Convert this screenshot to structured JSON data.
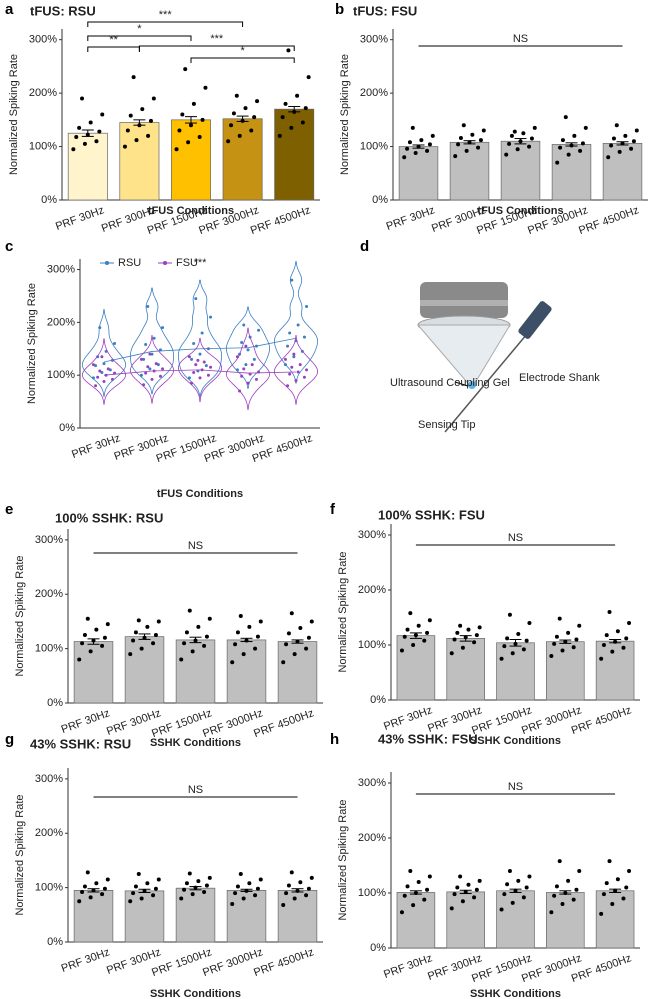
{
  "chart_data": [
    {
      "panel": "a",
      "type": "bar",
      "title": "tFUS: RSU",
      "title_color": "#2f5597",
      "ylabel": "Normalized Spiking Rate",
      "xlabel": "tFUS Conditions",
      "categories": [
        "PRF 30Hz",
        "PRF 300Hz",
        "PRF 1500Hz",
        "PRF 3000Hz",
        "PRF 4500Hz"
      ],
      "values": [
        125,
        145,
        150,
        152,
        170
      ],
      "errors": [
        6,
        5,
        6,
        5,
        5
      ],
      "colors": [
        "#fff4cc",
        "#ffe38a",
        "#ffc000",
        "#c69214",
        "#7f6000"
      ],
      "points": [
        [
          95,
          105,
          110,
          118,
          122,
          128,
          135,
          145,
          160,
          190
        ],
        [
          100,
          112,
          120,
          130,
          140,
          148,
          158,
          170,
          190,
          230
        ],
        [
          95,
          108,
          118,
          130,
          140,
          150,
          160,
          180,
          210,
          245
        ],
        [
          110,
          120,
          130,
          140,
          148,
          155,
          162,
          172,
          185,
          195
        ],
        [
          120,
          135,
          145,
          155,
          165,
          172,
          180,
          195,
          230,
          280
        ]
      ],
      "ylim": [
        0,
        320
      ],
      "yticks": [
        {
          "value": 0,
          "label": "0%"
        },
        {
          "value": 100,
          "label": "100%"
        },
        {
          "value": 200,
          "label": "200%"
        },
        {
          "value": 300,
          "label": "300%"
        }
      ],
      "significance": [
        {
          "between": [
            "PRF 30Hz",
            "PRF 3000Hz"
          ],
          "label": "***"
        },
        {
          "between": [
            "PRF 30Hz",
            "PRF 1500Hz"
          ],
          "label": "*"
        },
        {
          "between": [
            "PRF 30Hz",
            "PRF 300Hz"
          ],
          "label": "**"
        },
        {
          "between": [
            "PRF 300Hz",
            "PRF 4500Hz"
          ],
          "label": "***"
        },
        {
          "between": [
            "PRF 1500Hz",
            "PRF 4500Hz"
          ],
          "label": "*"
        }
      ]
    },
    {
      "panel": "b",
      "type": "bar",
      "title": "tFUS: FSU",
      "title_color": "#7030a0",
      "ylabel": "Normalized Spiking Rate",
      "xlabel": "tFUS Conditions",
      "categories": [
        "PRF 30Hz",
        "PRF 300Hz",
        "PRF 1500Hz",
        "PRF 3000Hz",
        "PRF 4500Hz"
      ],
      "values": [
        100,
        108,
        110,
        104,
        106
      ],
      "errors": [
        3,
        3,
        5,
        3,
        3
      ],
      "colors": [
        "#bfbfbf",
        "#bfbfbf",
        "#bfbfbf",
        "#bfbfbf",
        "#bfbfbf"
      ],
      "points": [
        [
          80,
          88,
          92,
          96,
          100,
          104,
          108,
          112,
          120,
          135
        ],
        [
          82,
          92,
          98,
          104,
          108,
          112,
          116,
          122,
          130,
          140
        ],
        [
          85,
          95,
          100,
          105,
          110,
          115,
          120,
          125,
          135,
          128
        ],
        [
          70,
          85,
          92,
          98,
          102,
          106,
          112,
          120,
          135,
          155
        ],
        [
          80,
          90,
          96,
          102,
          106,
          110,
          115,
          120,
          130,
          140
        ]
      ],
      "ylim": [
        0,
        320
      ],
      "yticks": [
        {
          "value": 0,
          "label": "0%"
        },
        {
          "value": 100,
          "label": "100%"
        },
        {
          "value": 200,
          "label": "200%"
        },
        {
          "value": 300,
          "label": "300%"
        }
      ],
      "significance": [
        {
          "between": [
            "PRF 30Hz",
            "PRF 4500Hz"
          ],
          "label": "NS"
        }
      ]
    },
    {
      "panel": "c",
      "type": "violin",
      "ylabel": "Normalized Spiking Rate",
      "xlabel": "tFUS Conditions",
      "annotation": "***",
      "categories": [
        "PRF 30Hz",
        "PRF 300Hz",
        "PRF 1500Hz",
        "PRF 3000Hz",
        "PRF 4500Hz"
      ],
      "series": [
        {
          "name": "RSU",
          "color": "#3a7fc1",
          "values": [
            125,
            145,
            150,
            152,
            170
          ],
          "points": [
            [
              95,
              105,
              110,
              118,
              122,
              128,
              135,
              145,
              160,
              190
            ],
            [
              100,
              112,
              120,
              130,
              140,
              148,
              158,
              170,
              190,
              230
            ],
            [
              95,
              108,
              118,
              130,
              140,
              150,
              160,
              180,
              210,
              245
            ],
            [
              110,
              120,
              130,
              140,
              148,
              155,
              162,
              172,
              185,
              195
            ],
            [
              120,
              135,
              145,
              155,
              165,
              172,
              180,
              195,
              230,
              280
            ]
          ]
        },
        {
          "name": "FSU",
          "color": "#9b3fbf",
          "values": [
            100,
            108,
            110,
            104,
            106
          ],
          "points": [
            [
              80,
              88,
              92,
              96,
              100,
              104,
              108,
              112,
              120,
              135
            ],
            [
              82,
              92,
              98,
              104,
              108,
              112,
              116,
              122,
              130,
              140
            ],
            [
              85,
              95,
              100,
              105,
              110,
              115,
              120,
              125,
              135,
              128
            ],
            [
              70,
              85,
              92,
              98,
              102,
              106,
              112,
              120,
              135,
              155
            ],
            [
              80,
              90,
              96,
              102,
              106,
              110,
              115,
              120,
              130,
              140
            ]
          ]
        }
      ],
      "ylim": [
        0,
        320
      ],
      "yticks": [
        {
          "value": 0,
          "label": "0%"
        },
        {
          "value": 100,
          "label": "100%"
        },
        {
          "value": 200,
          "label": "200%"
        },
        {
          "value": 300,
          "label": "300%"
        }
      ]
    },
    {
      "panel": "e",
      "type": "bar",
      "title": "100% SSHK: RSU",
      "title_color": "#2f5597",
      "ylabel": "Normalized Spiking Rate",
      "xlabel": "SSHK Conditions",
      "categories": [
        "PRF 30Hz",
        "PRF 300Hz",
        "PRF 1500Hz",
        "PRF 3000Hz",
        "PRF 4500Hz"
      ],
      "values": [
        113,
        122,
        116,
        116,
        113
      ],
      "errors": [
        5,
        5,
        5,
        3,
        3
      ],
      "colors": [
        "#bfbfbf",
        "#bfbfbf",
        "#bfbfbf",
        "#bfbfbf",
        "#bfbfbf"
      ],
      "points": [
        [
          80,
          95,
          105,
          110,
          115,
          120,
          125,
          135,
          145,
          155
        ],
        [
          90,
          100,
          110,
          115,
          120,
          125,
          130,
          140,
          150,
          152
        ],
        [
          80,
          95,
          105,
          110,
          115,
          122,
          130,
          140,
          155,
          170
        ],
        [
          75,
          90,
          100,
          108,
          115,
          122,
          130,
          140,
          150,
          160
        ],
        [
          75,
          90,
          100,
          108,
          113,
          120,
          128,
          138,
          150,
          165
        ]
      ],
      "ylim": [
        0,
        320
      ],
      "yticks": [
        {
          "value": 0,
          "label": "0%"
        },
        {
          "value": 100,
          "label": "100%"
        },
        {
          "value": 200,
          "label": "200%"
        },
        {
          "value": 300,
          "label": "300%"
        }
      ],
      "significance": [
        {
          "between": [
            "PRF 30Hz",
            "PRF 4500Hz"
          ],
          "label": "NS"
        }
      ]
    },
    {
      "panel": "f",
      "type": "bar",
      "title": "100% SSHK: FSU",
      "title_color": "#7030a0",
      "ylabel": "Normalized Spiking Rate",
      "xlabel": "SSHK Conditions",
      "categories": [
        "PRF 30Hz",
        "PRF 300Hz",
        "PRF 1500Hz",
        "PRF 3000Hz",
        "PRF 4500Hz"
      ],
      "values": [
        117,
        112,
        104,
        106,
        107
      ],
      "errors": [
        5,
        5,
        6,
        3,
        3
      ],
      "colors": [
        "#bfbfbf",
        "#bfbfbf",
        "#bfbfbf",
        "#bfbfbf",
        "#bfbfbf"
      ],
      "points": [
        [
          90,
          100,
          108,
          115,
          118,
          122,
          128,
          135,
          145,
          158
        ],
        [
          85,
          95,
          105,
          110,
          114,
          118,
          122,
          128,
          132,
          135
        ],
        [
          75,
          85,
          92,
          98,
          102,
          108,
          112,
          120,
          140,
          155
        ],
        [
          80,
          90,
          96,
          102,
          106,
          110,
          115,
          122,
          135,
          148
        ],
        [
          75,
          88,
          95,
          100,
          106,
          112,
          118,
          125,
          140,
          160
        ]
      ],
      "ylim": [
        0,
        320
      ],
      "yticks": [
        {
          "value": 0,
          "label": "0%"
        },
        {
          "value": 100,
          "label": "100%"
        },
        {
          "value": 200,
          "label": "200%"
        },
        {
          "value": 300,
          "label": "300%"
        }
      ],
      "significance": [
        {
          "between": [
            "PRF 30Hz",
            "PRF 4500Hz"
          ],
          "label": "NS"
        }
      ]
    },
    {
      "panel": "g",
      "type": "bar",
      "title": "43% SSHK: RSU",
      "title_color": "#2f5597",
      "ylabel": "Normalized Spiking Rate",
      "xlabel": "SSHK Conditions",
      "categories": [
        "PRF 30Hz",
        "PRF 300Hz",
        "PRF 1500Hz",
        "PRF 3000Hz",
        "PRF 4500Hz"
      ],
      "values": [
        95,
        94,
        99,
        95,
        95
      ],
      "errors": [
        3,
        3,
        3,
        2,
        3
      ],
      "colors": [
        "#bfbfbf",
        "#bfbfbf",
        "#bfbfbf",
        "#bfbfbf",
        "#bfbfbf"
      ],
      "points": [
        [
          75,
          82,
          88,
          92,
          95,
          98,
          102,
          108,
          115,
          128
        ],
        [
          75,
          80,
          86,
          90,
          94,
          98,
          102,
          108,
          115,
          125
        ],
        [
          80,
          88,
          92,
          96,
          100,
          104,
          108,
          112,
          118,
          126
        ],
        [
          70,
          80,
          86,
          90,
          94,
          98,
          102,
          108,
          115,
          125
        ],
        [
          68,
          80,
          86,
          90,
          94,
          98,
          104,
          110,
          118,
          128
        ]
      ],
      "ylim": [
        0,
        320
      ],
      "yticks": [
        {
          "value": 0,
          "label": "0%"
        },
        {
          "value": 100,
          "label": "100%"
        },
        {
          "value": 200,
          "label": "200%"
        },
        {
          "value": 300,
          "label": "300%"
        }
      ],
      "significance": [
        {
          "between": [
            "PRF 30Hz",
            "PRF 4500Hz"
          ],
          "label": "NS"
        }
      ]
    },
    {
      "panel": "h",
      "type": "bar",
      "title": "43% SSHK: FSU",
      "title_color": "#7030a0",
      "ylabel": "Normalized Spiking Rate",
      "xlabel": "SSHK Conditions",
      "categories": [
        "PRF 30Hz",
        "PRF 300Hz",
        "PRF 1500Hz",
        "PRF 3000Hz",
        "PRF 4500Hz"
      ],
      "values": [
        101,
        102,
        104,
        101,
        104
      ],
      "errors": [
        3,
        3,
        3,
        3,
        3
      ],
      "colors": [
        "#bfbfbf",
        "#bfbfbf",
        "#bfbfbf",
        "#bfbfbf",
        "#bfbfbf"
      ],
      "points": [
        [
          65,
          78,
          88,
          95,
          100,
          106,
          112,
          120,
          130,
          140
        ],
        [
          72,
          85,
          92,
          98,
          102,
          106,
          110,
          115,
          122,
          130
        ],
        [
          70,
          82,
          92,
          98,
          104,
          110,
          116,
          122,
          130,
          140
        ],
        [
          65,
          80,
          88,
          95,
          100,
          106,
          112,
          122,
          140,
          158
        ],
        [
          62,
          80,
          90,
          98,
          104,
          110,
          118,
          125,
          140,
          158
        ]
      ],
      "ylim": [
        0,
        320
      ],
      "yticks": [
        {
          "value": 0,
          "label": "0%"
        },
        {
          "value": 100,
          "label": "100%"
        },
        {
          "value": 200,
          "label": "200%"
        },
        {
          "value": 300,
          "label": "300%"
        }
      ],
      "significance": [
        {
          "between": [
            "PRF 30Hz",
            "PRF 4500Hz"
          ],
          "label": "NS"
        }
      ]
    }
  ],
  "diagram": {
    "panel": "d",
    "labels": [
      "Ultrasound Coupling Gel",
      "Electrode Shank",
      "Sensing Tip"
    ]
  }
}
